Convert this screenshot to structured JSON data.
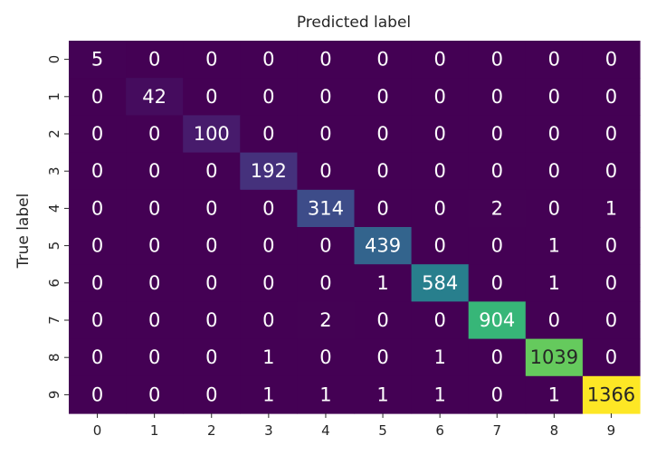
{
  "chart_data": {
    "type": "heatmap",
    "title": "Predicted label",
    "xlabel": "",
    "ylabel": "True label",
    "x_ticks": [
      "0",
      "1",
      "2",
      "3",
      "4",
      "5",
      "6",
      "7",
      "8",
      "9"
    ],
    "y_ticks": [
      "0",
      "1",
      "2",
      "3",
      "4",
      "5",
      "6",
      "7",
      "8",
      "9"
    ],
    "matrix": [
      [
        5,
        0,
        0,
        0,
        0,
        0,
        0,
        0,
        0,
        0
      ],
      [
        0,
        42,
        0,
        0,
        0,
        0,
        0,
        0,
        0,
        0
      ],
      [
        0,
        0,
        100,
        0,
        0,
        0,
        0,
        0,
        0,
        0
      ],
      [
        0,
        0,
        0,
        192,
        0,
        0,
        0,
        0,
        0,
        0
      ],
      [
        0,
        0,
        0,
        0,
        314,
        0,
        0,
        2,
        0,
        1
      ],
      [
        0,
        0,
        0,
        0,
        0,
        439,
        0,
        0,
        1,
        0
      ],
      [
        0,
        0,
        0,
        0,
        0,
        1,
        584,
        0,
        1,
        0
      ],
      [
        0,
        0,
        0,
        0,
        2,
        0,
        0,
        904,
        0,
        0
      ],
      [
        0,
        0,
        0,
        1,
        0,
        0,
        1,
        0,
        1039,
        0
      ],
      [
        0,
        0,
        0,
        1,
        1,
        1,
        1,
        0,
        1,
        1366
      ]
    ],
    "colormap": "viridis",
    "colorbar": false,
    "color_range": [
      0,
      1366
    ]
  }
}
